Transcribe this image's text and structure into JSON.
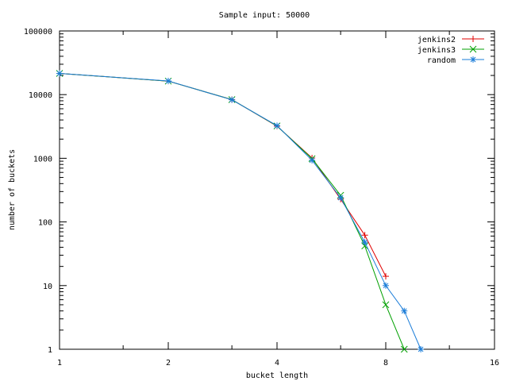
{
  "chart_data": {
    "type": "line",
    "title": "Sample input: 50000",
    "xlabel": "bucket length",
    "ylabel": "number of buckets",
    "x_scale": "log2",
    "y_scale": "log10",
    "xlim": [
      1,
      16
    ],
    "ylim": [
      1,
      100000
    ],
    "x_ticks": [
      1,
      2,
      4,
      8,
      16
    ],
    "x_tick_labels": [
      "1",
      "2",
      "4",
      "8",
      "16"
    ],
    "y_ticks": [
      1,
      10,
      100,
      1000,
      10000,
      100000
    ],
    "y_tick_labels": [
      "1",
      "10",
      "100",
      "1000",
      "10000",
      "100000"
    ],
    "grid": false,
    "legend_position": "top-right",
    "series": [
      {
        "name": "jenkins2",
        "color": "#e00000",
        "marker": "plus",
        "x": [
          1,
          2,
          3,
          4,
          5,
          6,
          7,
          8
        ],
        "y": [
          21500,
          16300,
          8350,
          3200,
          1010,
          228,
          62,
          14
        ]
      },
      {
        "name": "jenkins3",
        "color": "#00a000",
        "marker": "cross",
        "x": [
          1,
          2,
          3,
          4,
          5,
          6,
          7,
          8,
          9
        ],
        "y": [
          21500,
          16300,
          8350,
          3220,
          985,
          262,
          42,
          5,
          1
        ]
      },
      {
        "name": "random",
        "color": "#1a7cd8",
        "marker": "star",
        "x": [
          1,
          2,
          3,
          4,
          5,
          6,
          7,
          8,
          9,
          10
        ],
        "y": [
          21500,
          16400,
          8300,
          3250,
          930,
          240,
          48,
          10,
          4,
          1
        ]
      }
    ]
  }
}
